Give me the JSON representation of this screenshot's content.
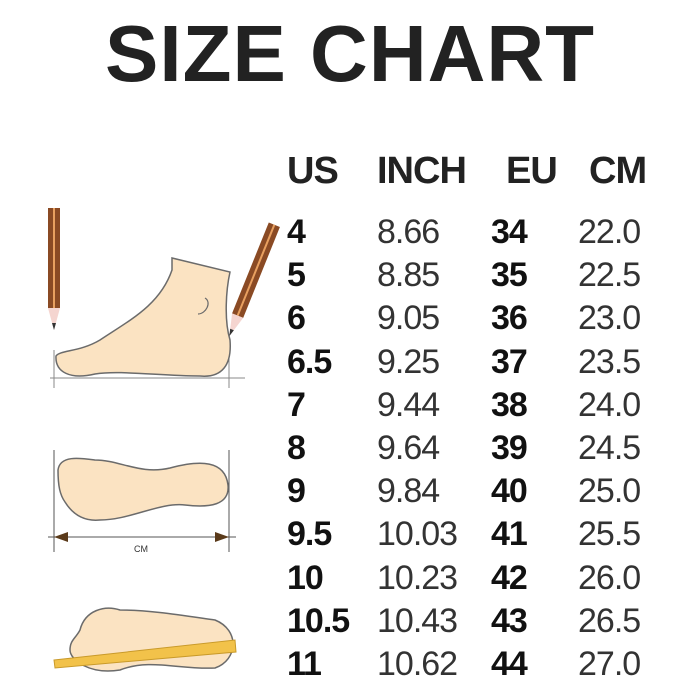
{
  "title": "SIZE CHART",
  "headers": [
    "US",
    "INCH",
    "EU",
    "CM"
  ],
  "rows": [
    [
      "4",
      "8.66",
      "34",
      "22.0"
    ],
    [
      "5",
      "8.85",
      "35",
      "22.5"
    ],
    [
      "6",
      "9.05",
      "36",
      "23.0"
    ],
    [
      "6.5",
      "9.25",
      "37",
      "23.5"
    ],
    [
      "7",
      "9.44",
      "38",
      "24.0"
    ],
    [
      "8",
      "9.64",
      "39",
      "24.5"
    ],
    [
      "9",
      "9.84",
      "40",
      "25.0"
    ],
    [
      "9.5",
      "10.03",
      "41",
      "25.5"
    ],
    [
      "10",
      "10.23",
      "42",
      "26.0"
    ],
    [
      "10.5",
      "10.43",
      "43",
      "26.5"
    ],
    [
      "11",
      "10.62",
      "44",
      "27.0"
    ]
  ],
  "illustration": {
    "measure_label": "CM"
  },
  "colors": {
    "skin": "#fbe3c2",
    "outline": "#6b6b6b",
    "pencil": "#8a4a24",
    "ruler": "#f2c24a"
  }
}
